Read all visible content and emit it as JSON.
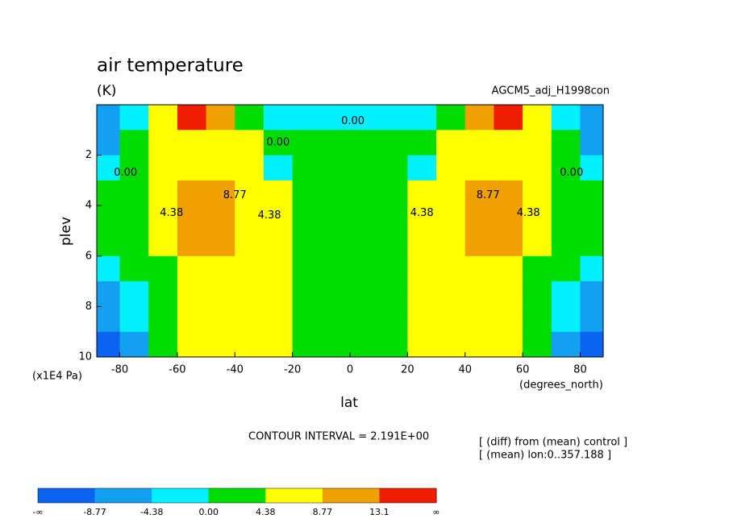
{
  "chart_data": {
    "type": "contour",
    "title": "air temperature",
    "subtitle": "(K)",
    "dataset_label": "AGCM5_adj_H1998con",
    "x_label": "lat",
    "x_unit": "(degrees_north)",
    "y_label": "plev",
    "y_unit": "(x1E4 Pa)",
    "x": [
      -85,
      -75,
      -65,
      -55,
      -45,
      -35,
      -25,
      -15,
      -5,
      5,
      15,
      25,
      35,
      45,
      55,
      65,
      75,
      85
    ],
    "y": [
      0.5,
      1.5,
      2.5,
      3.5,
      4.5,
      5.5,
      6.5,
      7.5,
      8.5,
      9.5
    ],
    "z": [
      [
        -6,
        -3,
        7,
        14,
        9,
        3,
        -1,
        -2,
        -2,
        -2,
        -2,
        -1,
        3,
        9,
        14,
        7,
        -3,
        -6
      ],
      [
        -5,
        2,
        6,
        7,
        8,
        6,
        3,
        1,
        2,
        2,
        1,
        3,
        6,
        8,
        7,
        6,
        2,
        -5
      ],
      [
        -1,
        3,
        6,
        7,
        7,
        5,
        -3,
        3,
        3,
        3,
        3,
        -3,
        5,
        7,
        7,
        6,
        3,
        -1
      ],
      [
        2,
        3,
        6,
        9,
        9,
        7,
        5,
        3,
        3,
        3,
        3,
        5,
        7,
        9,
        9,
        6,
        3,
        2
      ],
      [
        2,
        3,
        6,
        10,
        10,
        7,
        6,
        3,
        3,
        3,
        3,
        6,
        7,
        10,
        10,
        6,
        3,
        2
      ],
      [
        1,
        3,
        6,
        9,
        10,
        7,
        6,
        3,
        3,
        3,
        3,
        6,
        7,
        10,
        9,
        6,
        3,
        1
      ],
      [
        -2,
        2,
        4,
        6,
        7,
        7,
        6,
        4,
        3,
        3,
        4,
        6,
        7,
        7,
        6,
        4,
        2,
        -2
      ],
      [
        -5,
        -1,
        3,
        5,
        6,
        7,
        6,
        4,
        2,
        2,
        4,
        6,
        7,
        6,
        5,
        3,
        -1,
        -5
      ],
      [
        -8,
        -3,
        2,
        5,
        6,
        6,
        6,
        4,
        2,
        2,
        4,
        6,
        6,
        6,
        5,
        2,
        -3,
        -8
      ],
      [
        -10,
        -5,
        1,
        5,
        6,
        6,
        5,
        4,
        2,
        2,
        4,
        5,
        6,
        6,
        5,
        1,
        -5,
        -10
      ]
    ],
    "xlim": [
      -88,
      88
    ],
    "ylim": [
      10,
      0
    ],
    "xticks": [
      -80,
      -60,
      -40,
      -20,
      0,
      20,
      40,
      60,
      80
    ],
    "yticks": [
      2,
      4,
      6,
      8,
      10
    ],
    "contour_labels": [
      {
        "text": "0.00",
        "x": 1,
        "y": 0.65
      },
      {
        "text": "0.00",
        "x": -25,
        "y": 1.5
      },
      {
        "text": "0.00",
        "x": -78,
        "y": 2.7
      },
      {
        "text": "0.00",
        "x": 77,
        "y": 2.7
      },
      {
        "text": "4.38",
        "x": -62,
        "y": 4.3
      },
      {
        "text": "8.77",
        "x": -40,
        "y": 3.6
      },
      {
        "text": "4.38",
        "x": -28,
        "y": 4.4
      },
      {
        "text": "4.38",
        "x": 25,
        "y": 4.3
      },
      {
        "text": "8.77",
        "x": 48,
        "y": 3.6
      },
      {
        "text": "4.38",
        "x": 62,
        "y": 4.3
      }
    ],
    "contour_interval_text": "CONTOUR INTERVAL = 2.191E+00",
    "notes": [
      "[ (diff) from (mean) control ]",
      "[ (mean) lon:0..357.188 ]"
    ],
    "colorbar": {
      "colors": [
        "#0a64f0",
        "#14a0f0",
        "#00f0ff",
        "#00dc00",
        "#ffff00",
        "#f0a000",
        "#f01e00"
      ],
      "ticks": [
        "-∞",
        -8.77,
        -4.38,
        {
          "value": 0,
          "label": "0.00"
        },
        4.38,
        8.77,
        13.1,
        "∞"
      ]
    }
  }
}
